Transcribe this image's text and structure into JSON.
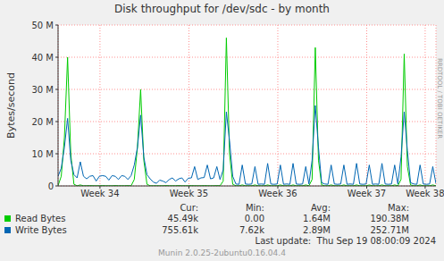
{
  "chart_data": {
    "type": "line",
    "title": "Disk throughput for /dev/sdc - by month",
    "y_label": "Bytes/second",
    "x": [
      0,
      0.25,
      0.5,
      0.75,
      1,
      1.25,
      1.5,
      1.75,
      2,
      2.25,
      2.5,
      2.75,
      3,
      3.25,
      3.5,
      3.75,
      4,
      4.25,
      4.5,
      4.75,
      5,
      5.25,
      5.5,
      5.75,
      6,
      6.25,
      6.5,
      6.75,
      7,
      7.25,
      7.5,
      7.75,
      8,
      8.25,
      8.5,
      8.75,
      9,
      9.25,
      9.5,
      9.75,
      10,
      10.25,
      10.5,
      10.75,
      11,
      11.25,
      11.5,
      11.75,
      12,
      12.25,
      12.5,
      12.75,
      13,
      13.25,
      13.5,
      13.75,
      14,
      14.25,
      14.5,
      14.75,
      15,
      15.25,
      15.5,
      15.75,
      16,
      16.25,
      16.5,
      16.75,
      17,
      17.25,
      17.5,
      17.75,
      18,
      18.25,
      18.5,
      18.75,
      19,
      19.25,
      19.5,
      19.75,
      20,
      20.25,
      20.5,
      20.75,
      21,
      21.25,
      21.5,
      21.75,
      22,
      22.25,
      22.5,
      22.75,
      23,
      23.25,
      23.5,
      23.75,
      24,
      24.25,
      24.5,
      24.75,
      25,
      25.25,
      25.5,
      25.75,
      26,
      26.25,
      26.5,
      26.75,
      27,
      27.25,
      27.5,
      27.75,
      28,
      28.25,
      28.5,
      28.75,
      29,
      29.25,
      29.5,
      29.75
    ],
    "xlim": [
      0,
      29.75
    ],
    "xticks": [
      {
        "value": 3.3,
        "label": "Week 34"
      },
      {
        "value": 10.3,
        "label": "Week 35"
      },
      {
        "value": 17.3,
        "label": "Week 36"
      },
      {
        "value": 24.3,
        "label": "Week 37"
      },
      {
        "value": 28.9,
        "label": "Week 38"
      }
    ],
    "ylim": [
      0,
      50
    ],
    "yticks": [
      0,
      {
        "value": 10,
        "label": "10 M"
      },
      {
        "value": 20,
        "label": "20 M"
      },
      {
        "value": 30,
        "label": "30 M"
      },
      {
        "value": 40,
        "label": "40 M"
      },
      {
        "value": 50,
        "label": "50 M"
      }
    ],
    "grid": true,
    "stats_columns": [
      "Cur:",
      "Min:",
      "Avg:",
      "Max:"
    ],
    "series": [
      {
        "name": "Read Bytes",
        "color": "#00cc00",
        "stats": [
          "45.49k",
          "0.00",
          "1.64M",
          "190.38M"
        ],
        "values": [
          0.1,
          3,
          15,
          40,
          10,
          0.5,
          0.05,
          0.3,
          0.05,
          0.05,
          0.1,
          0.05,
          0.05,
          0.05,
          0.1,
          0.05,
          0.05,
          0.05,
          0.1,
          0.05,
          0.05,
          0.05,
          0.1,
          0.05,
          2,
          12,
          30,
          8,
          0.5,
          0.05,
          0.05,
          0.05,
          0.05,
          0.05,
          0.1,
          0.05,
          0.05,
          0.05,
          0.1,
          0.05,
          0.05,
          0.05,
          0.1,
          0.05,
          0.05,
          0.05,
          0.1,
          0.05,
          0.05,
          0.05,
          0.1,
          0.05,
          1.5,
          46,
          10,
          0.5,
          0.05,
          0.05,
          0.3,
          0.05,
          0.05,
          0.05,
          0.3,
          0.05,
          0.05,
          0.05,
          0.3,
          0.05,
          0.05,
          0.05,
          0.3,
          0.05,
          0.05,
          0.05,
          0.3,
          0.05,
          0.05,
          0.05,
          0.3,
          0.05,
          2,
          43,
          8,
          0.3,
          0.05,
          0.05,
          0.3,
          0.05,
          0.05,
          0.05,
          0.3,
          0.05,
          0.05,
          0.05,
          0.3,
          0.05,
          0.05,
          0.05,
          0.3,
          0.05,
          0.05,
          0.05,
          0.3,
          0.05,
          0.05,
          0.05,
          0.3,
          0.05,
          2,
          41,
          6,
          0.3,
          0.05,
          0.05,
          0.3,
          0.05,
          0.05,
          0.05,
          0.3,
          0.05
        ]
      },
      {
        "name": "Write Bytes",
        "color": "#0066b3",
        "stats": [
          "755.61k",
          "7.62k",
          "2.89M",
          "252.71M"
        ],
        "values": [
          3.0,
          5.5,
          12,
          21,
          8,
          3.5,
          2.5,
          7.5,
          3.0,
          2.2,
          3.0,
          3.2,
          1.5,
          3.0,
          3.2,
          3.0,
          1.8,
          3.2,
          3.0,
          2.0,
          3.2,
          3.0,
          2.0,
          3.2,
          6.5,
          12,
          22,
          9,
          3.5,
          2.2,
          1.2,
          0.8,
          1.8,
          1.5,
          1.0,
          2.0,
          2.5,
          1.5,
          2.2,
          2.5,
          1.2,
          2.4,
          2.5,
          6.0,
          2.0,
          2.5,
          2.6,
          6.5,
          2.2,
          2.5,
          6.0,
          2.0,
          5.0,
          23,
          14,
          3.0,
          0.6,
          0.5,
          6.5,
          0.6,
          0.5,
          0.6,
          6.0,
          0.5,
          0.6,
          0.5,
          7.0,
          0.6,
          0.5,
          0.6,
          6.5,
          0.5,
          0.6,
          0.5,
          7.0,
          0.6,
          0.5,
          0.6,
          6.0,
          0.6,
          8,
          25,
          12,
          1.0,
          0.6,
          0.5,
          6.5,
          0.6,
          0.5,
          0.6,
          6.5,
          0.5,
          0.6,
          0.5,
          7.0,
          0.6,
          0.5,
          0.6,
          6.5,
          0.5,
          0.6,
          0.5,
          7.0,
          0.6,
          0.5,
          0.6,
          6.5,
          0.6,
          9,
          23,
          11,
          1.0,
          0.6,
          0.5,
          6.5,
          0.6,
          0.5,
          0.6,
          6.0,
          0.76
        ]
      }
    ],
    "last_update": "Last update:  Thu Sep 19 08:00:09 2024",
    "footer": "Munin 2.0.25-2ubuntu0.16.04.4",
    "watermark": "RRDTOOL / TOBI OETIKER"
  }
}
